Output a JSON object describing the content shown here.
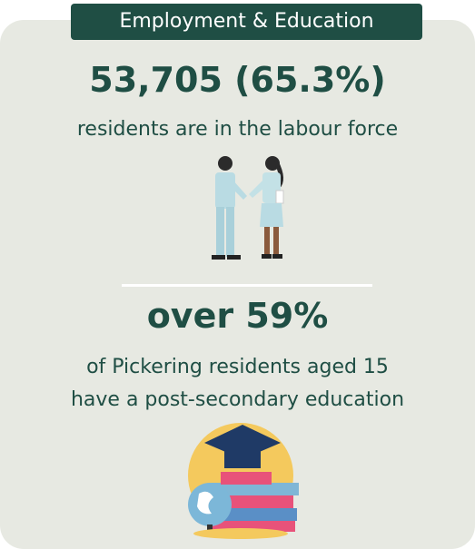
{
  "header": {
    "title": "Employment & Education"
  },
  "sections": [
    {
      "stat": "53,705 (65.3%)",
      "lines": [
        "residents are in the labour force"
      ]
    },
    {
      "stat": "over 59%",
      "lines": [
        "of Pickering residents aged 15",
        "have a post-secondary education"
      ]
    }
  ]
}
